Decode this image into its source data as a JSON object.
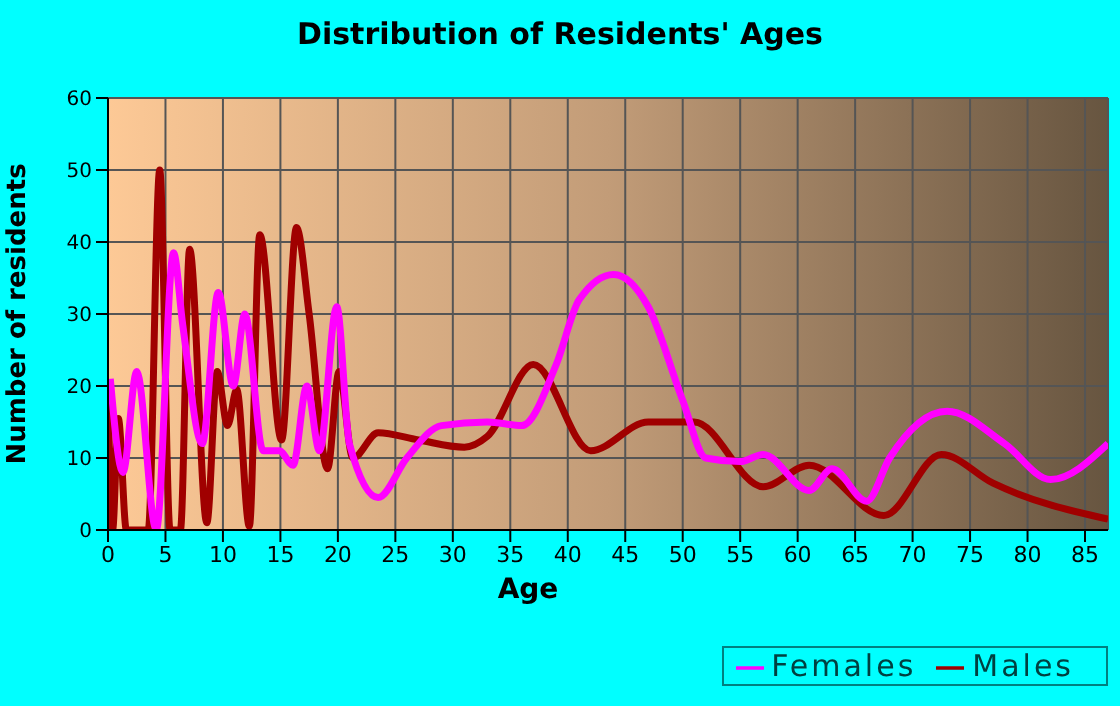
{
  "chart_data": {
    "type": "line",
    "title": "Distribution of Residents' Ages",
    "xlabel": "Age",
    "ylabel": "Number of residents",
    "xlim": [
      0,
      87
    ],
    "xticks": [
      0,
      5,
      10,
      15,
      20,
      25,
      30,
      35,
      40,
      45,
      50,
      55,
      60,
      65,
      70,
      75,
      80,
      85
    ],
    "ylim": [
      0,
      60
    ],
    "yticks": [
      0,
      10,
      20,
      30,
      40,
      50,
      60
    ],
    "grid": true,
    "legend": "bottom right",
    "marker": "none",
    "line_style": "solid",
    "series": [
      {
        "name": "Males",
        "color": "#a00000",
        "x": [
          0,
          0.4,
          0.9,
          1.6,
          3.5,
          4.5,
          5.4,
          6.3,
          7.1,
          8.6,
          9.5,
          10.4,
          11.2,
          12.3,
          13.2,
          15.1,
          16.4,
          17.5,
          19.1,
          20.1,
          21.3,
          23.5,
          27,
          31,
          33,
          37,
          42,
          47,
          51,
          57,
          61,
          67.5,
          72.5,
          77,
          87
        ],
        "values": [
          20,
          0,
          15.5,
          0,
          0,
          50,
          0,
          0,
          39,
          1,
          22,
          14.5,
          19.5,
          0.5,
          41,
          12.5,
          42,
          30,
          8.5,
          22,
          10,
          13.5,
          12.5,
          11.5,
          13,
          23,
          11,
          15,
          15,
          6,
          9,
          2,
          10.5,
          6.5,
          1.5
        ]
      },
      {
        "name": "Females",
        "color": "#ff00ff",
        "x": [
          0.2,
          1.3,
          2.5,
          4.2,
          5.7,
          6.5,
          8.2,
          9.6,
          10.9,
          11.9,
          13.5,
          14.9,
          16.1,
          17.3,
          18.4,
          19.9,
          21,
          23.5,
          26,
          29,
          33,
          36,
          39,
          41,
          44,
          47,
          50,
          52,
          55,
          57,
          61,
          63,
          66,
          68,
          73,
          78,
          82,
          87
        ],
        "values": [
          21,
          8,
          22,
          0,
          38.5,
          28.5,
          12,
          33,
          20,
          30,
          11,
          11,
          9,
          20,
          11,
          31,
          12,
          4.5,
          10,
          14.5,
          15,
          14.5,
          23,
          32,
          35.5,
          31,
          18,
          10,
          9.5,
          10.5,
          5.5,
          8.5,
          4,
          10,
          16.5,
          12,
          7,
          12
        ]
      }
    ]
  }
}
